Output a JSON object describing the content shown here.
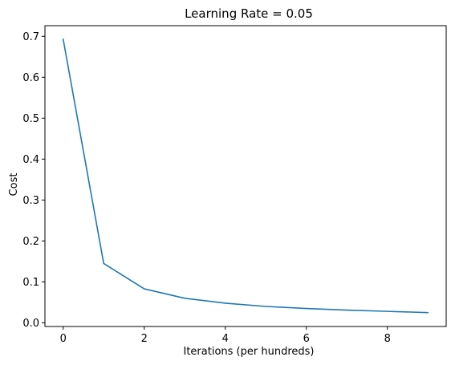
{
  "chart_data": {
    "type": "line",
    "title": "Learning Rate = 0.05",
    "xlabel": "Iterations (per hundreds)",
    "ylabel": "Cost",
    "xlim": [
      -0.45,
      9.45
    ],
    "ylim": [
      -0.009,
      0.726
    ],
    "xticks": [
      0,
      2,
      4,
      6,
      8
    ],
    "xtick_labels": [
      "0",
      "2",
      "4",
      "6",
      "8"
    ],
    "yticks": [
      0.0,
      0.1,
      0.2,
      0.3,
      0.4,
      0.5,
      0.6,
      0.7
    ],
    "ytick_labels": [
      "0.0",
      "0.1",
      "0.2",
      "0.3",
      "0.4",
      "0.5",
      "0.6",
      "0.7"
    ],
    "grid": false,
    "series": [
      {
        "color": "#1f77b4",
        "x": [
          0,
          1,
          2,
          3,
          4,
          5,
          6,
          7,
          8,
          9
        ],
        "y": [
          0.693,
          0.145,
          0.083,
          0.06,
          0.048,
          0.04,
          0.035,
          0.031,
          0.028,
          0.025
        ]
      }
    ]
  }
}
